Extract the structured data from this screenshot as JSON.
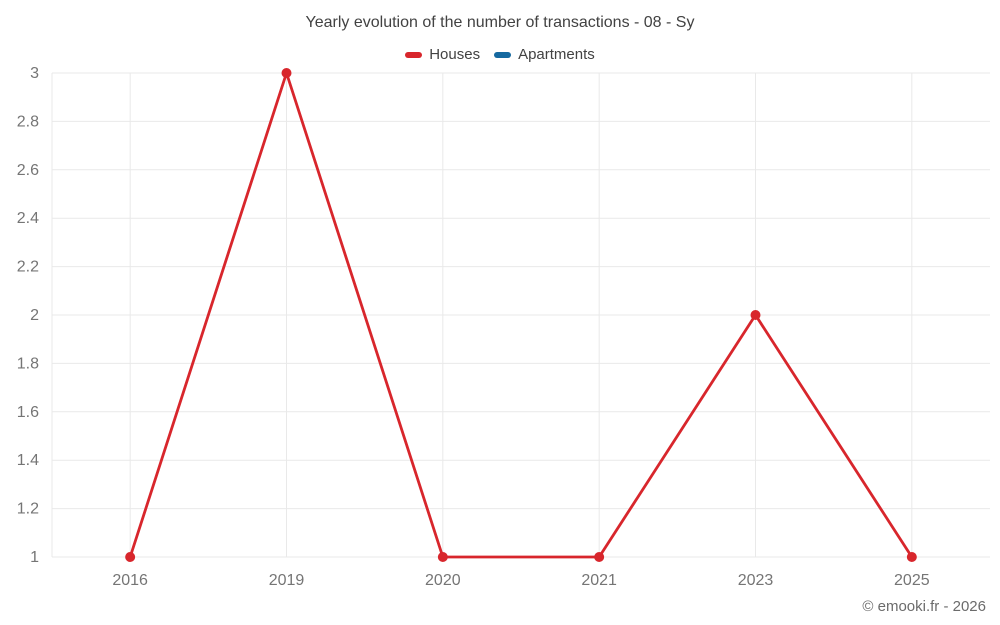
{
  "chart_data": {
    "type": "line",
    "title": "Yearly evolution of the number of transactions - 08 - Sy",
    "categories": [
      "2016",
      "2019",
      "2020",
      "2021",
      "2023",
      "2025"
    ],
    "series": [
      {
        "name": "Houses",
        "color": "#d8262c",
        "values": [
          1,
          3,
          1,
          1,
          2,
          1
        ]
      },
      {
        "name": "Apartments",
        "color": "#1569a0",
        "values": []
      }
    ],
    "xlabel": "",
    "ylabel": "",
    "ylim": [
      1,
      3
    ],
    "ytick_step": 0.2,
    "ytick_labels": [
      "1",
      "1.2",
      "1.4",
      "1.6",
      "1.8",
      "2",
      "2.2",
      "2.4",
      "2.6",
      "2.8",
      "3"
    ],
    "grid": true,
    "legend_position": "top",
    "colors": {
      "gridline": "#e9e9e9",
      "tick_label": "#757575",
      "title_text": "#424242",
      "background": "#ffffff"
    }
  },
  "footer": {
    "copyright": "© emooki.fr - 2026"
  }
}
